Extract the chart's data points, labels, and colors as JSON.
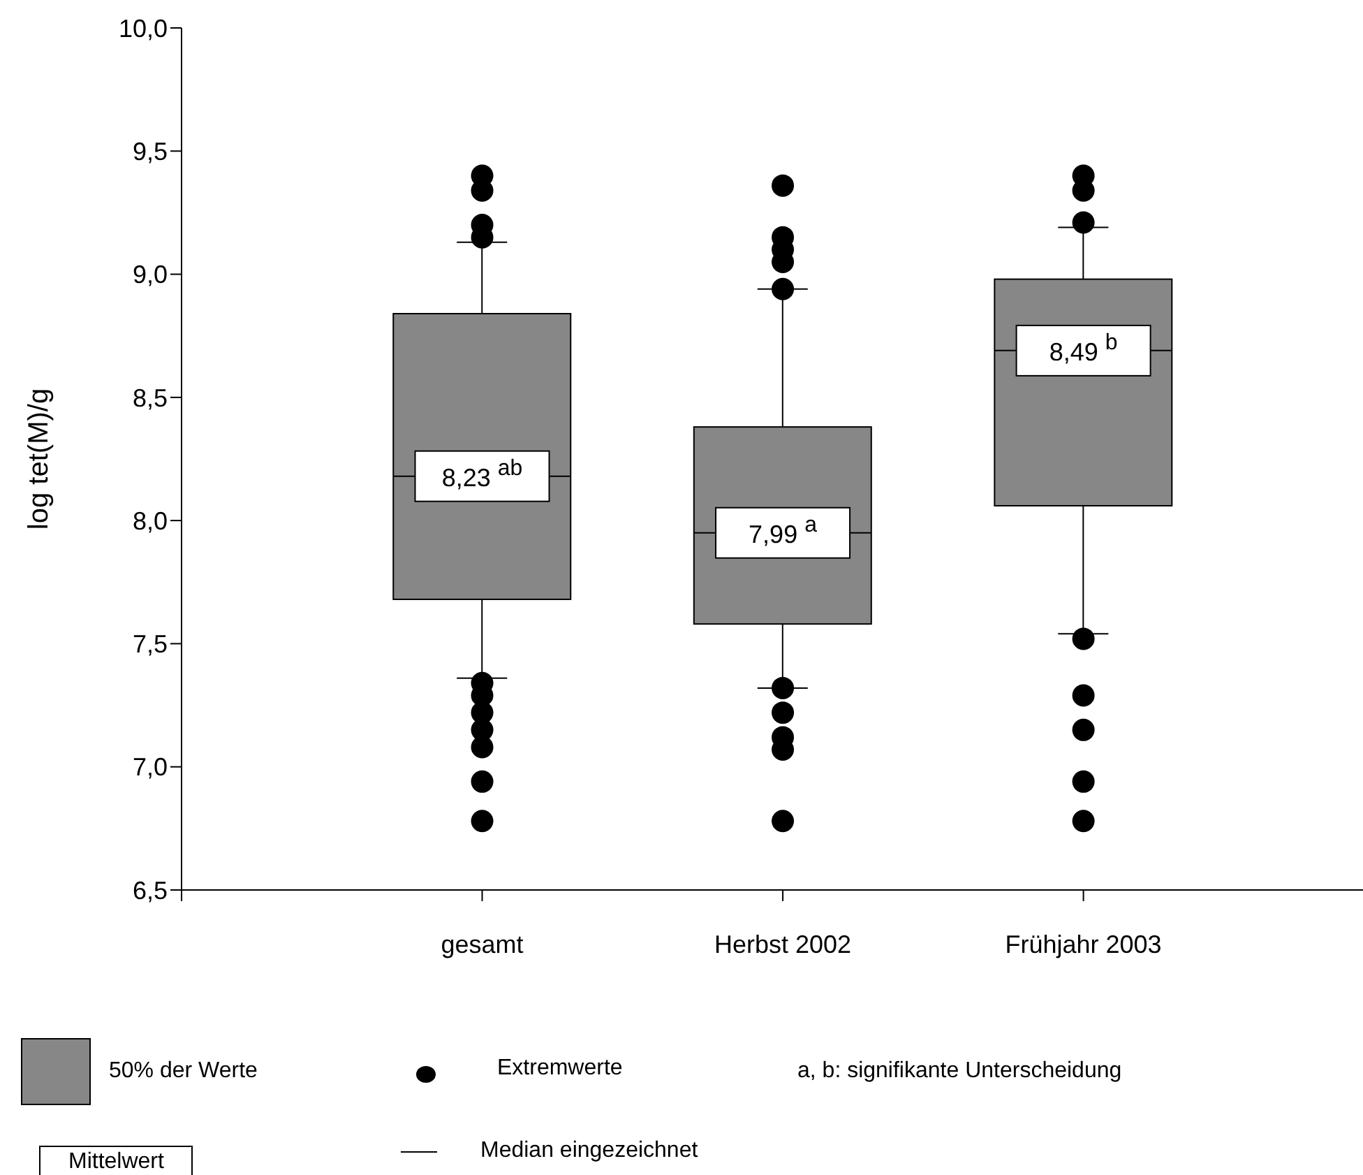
{
  "chart_data": {
    "type": "box",
    "ylabel": "log tet(M)/g",
    "categories": [
      "gesamt",
      "Herbst 2002",
      "Frühjahr 2003"
    ],
    "color": "#878787",
    "boxes": [
      {
        "low": 7.36,
        "q1": 7.68,
        "median": 8.18,
        "q3": 8.84,
        "high": 9.13,
        "outliers": [
          9.4,
          9.34,
          9.2,
          9.15,
          7.34,
          7.29,
          7.22,
          7.15,
          7.08,
          6.94,
          6.78
        ]
      },
      {
        "low": 7.32,
        "q1": 7.58,
        "median": 7.95,
        "q3": 8.38,
        "high": 8.94,
        "outliers": [
          9.36,
          9.15,
          9.1,
          9.05,
          8.94,
          7.32,
          7.22,
          7.12,
          7.07,
          6.78
        ]
      },
      {
        "low": 7.54,
        "q1": 8.06,
        "median": 8.69,
        "q3": 8.98,
        "high": 9.19,
        "outliers": [
          9.4,
          9.34,
          9.21,
          7.52,
          7.29,
          7.15,
          6.94,
          6.78
        ]
      }
    ],
    "ylim": [
      6.5,
      10.0
    ],
    "yticks": [
      {
        "value": 6.5,
        "label": "6,5"
      },
      {
        "value": 7.0,
        "label": "7,0"
      },
      {
        "value": 7.5,
        "label": "7,5"
      },
      {
        "value": 8.0,
        "label": "8,0"
      },
      {
        "value": 8.5,
        "label": "8,5"
      },
      {
        "value": 9.0,
        "label": "9,0"
      },
      {
        "value": 9.5,
        "label": "9,5"
      },
      {
        "value": 10.0,
        "label": "10,0"
      }
    ],
    "grid": false,
    "annotations": [
      "50% der Werte",
      "Extremwerte",
      "a, b: signifikante Unterscheidung",
      "Mittelwert",
      "Median eingezeichnet",
      "8,23 $^{ab}$",
      "7,99 $^{a}$",
      "8,49 $^{b}$"
    ]
  }
}
